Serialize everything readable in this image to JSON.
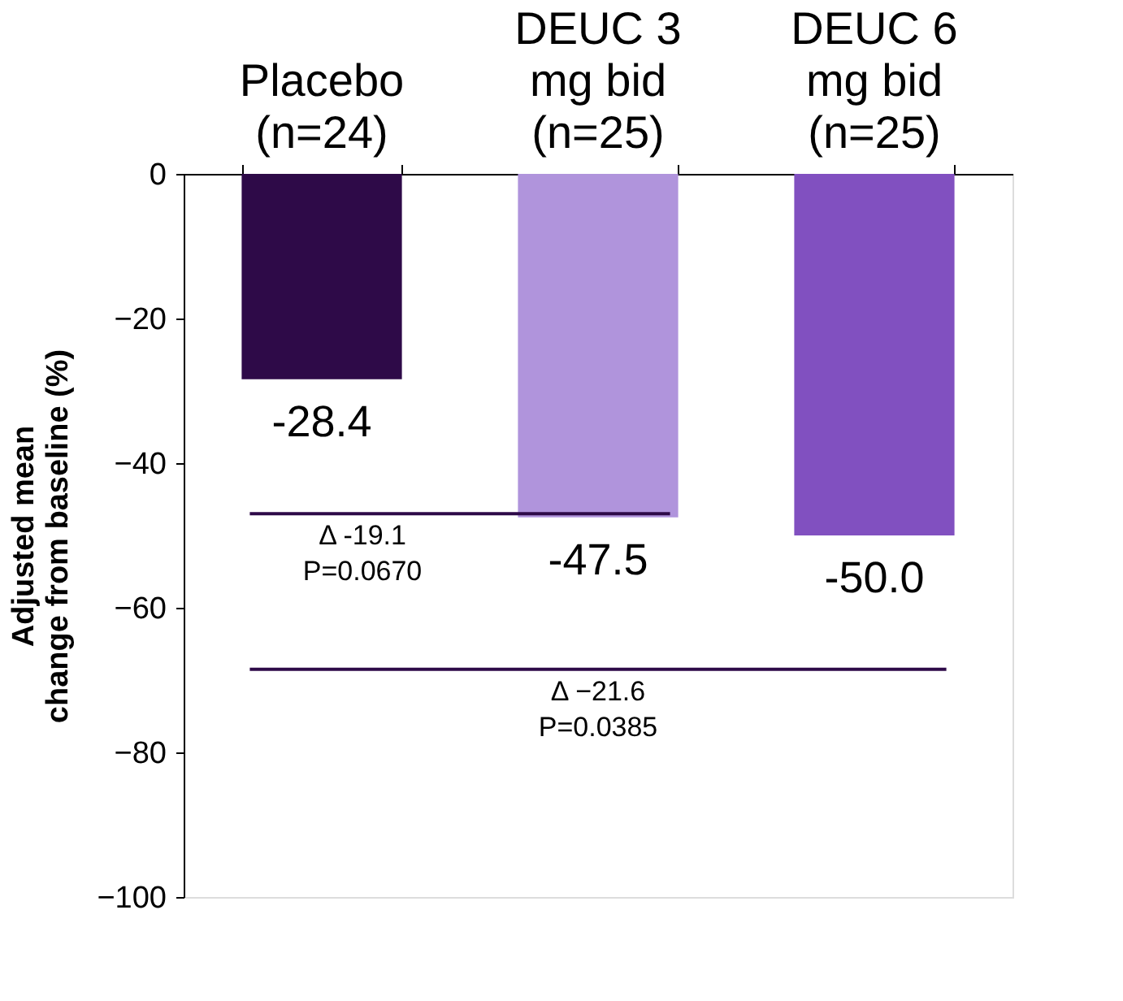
{
  "chart_data": {
    "type": "bar",
    "ylabel": "Adjusted mean\nchange from baseline (%)",
    "categories": [
      "Placebo\n(n=24)",
      "DEUC 3\nmg bid\n(n=25)",
      "DEUC 6\nmg bid\n(n=25)"
    ],
    "values": [
      -28.4,
      -47.5,
      -50.0
    ],
    "value_labels": [
      "-28.4",
      "-47.5",
      "-50.0"
    ],
    "colors": [
      "#2e0a48",
      "#b094dc",
      "#8150c0"
    ],
    "ylim": [
      -100,
      0
    ],
    "yticks": [
      0,
      -20,
      -40,
      -60,
      -80,
      -100
    ],
    "grid": false,
    "ref_lines": [
      {
        "axis": "y",
        "value": -47,
        "color": "#2e0a48"
      },
      {
        "axis": "y",
        "value": -68.5,
        "color": "#2e0a48"
      }
    ],
    "annotations": [
      "Δ -19.1\nP=0.0670",
      "Δ −21.6\nP=0.0385"
    ]
  }
}
